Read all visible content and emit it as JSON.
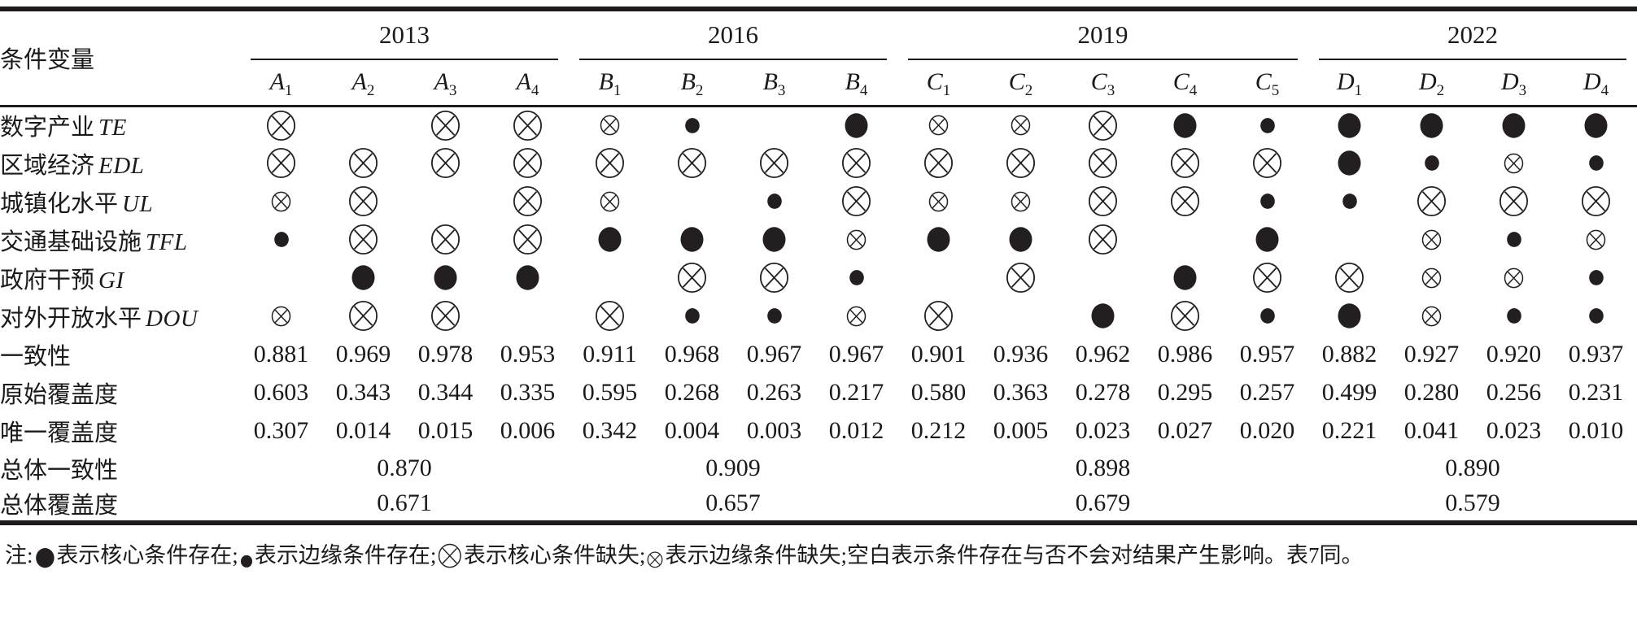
{
  "colors": {
    "ink": "#1f1b1c",
    "symbol": "#231f20",
    "background": "#ffffff"
  },
  "table": {
    "corner_label": "条件变量",
    "year_groups": [
      {
        "year": "2013",
        "cols": [
          "A1",
          "A2",
          "A3",
          "A4"
        ]
      },
      {
        "year": "2016",
        "cols": [
          "B1",
          "B2",
          "B3",
          "B4"
        ]
      },
      {
        "year": "2019",
        "cols": [
          "C1",
          "C2",
          "C3",
          "C4",
          "C5"
        ]
      },
      {
        "year": "2022",
        "cols": [
          "D1",
          "D2",
          "D3",
          "D4"
        ]
      }
    ],
    "symbol_legend": {
      "CP": "core-condition-present-large-filled-circle",
      "PP": "peripheral-condition-present-small-filled-circle",
      "CA": "core-condition-absent-large-circle-cross",
      "PA": "peripheral-condition-absent-small-circle-cross",
      "": "blank-condition-irrelevant"
    },
    "condition_rows": [
      {
        "label_zh": "数字产业",
        "label_en": "TE",
        "cells": [
          "CA",
          "",
          "CA",
          "CA",
          "PA",
          "PP",
          "",
          "CP",
          "PA",
          "PA",
          "CA",
          "CP",
          "PP",
          "CP",
          "CP",
          "CP",
          "CP"
        ]
      },
      {
        "label_zh": "区域经济",
        "label_en": "EDL",
        "cells": [
          "CA",
          "CA",
          "CA",
          "CA",
          "CA",
          "CA",
          "CA",
          "CA",
          "CA",
          "CA",
          "CA",
          "CA",
          "CA",
          "CP",
          "PP",
          "PA",
          "PP"
        ]
      },
      {
        "label_zh": "城镇化水平",
        "label_en": "UL",
        "cells": [
          "PA",
          "CA",
          "",
          "CA",
          "PA",
          "",
          "PP",
          "CA",
          "PA",
          "PA",
          "CA",
          "CA",
          "PP",
          "PP",
          "CA",
          "CA",
          "CA"
        ]
      },
      {
        "label_zh": "交通基础设施",
        "label_en": "TFL",
        "cells": [
          "PP",
          "CA",
          "CA",
          "CA",
          "CP",
          "CP",
          "CP",
          "PA",
          "CP",
          "CP",
          "CA",
          "",
          "CP",
          "",
          "PA",
          "PP",
          "PA"
        ]
      },
      {
        "label_zh": "政府干预",
        "label_en": "GI",
        "cells": [
          "",
          "CP",
          "CP",
          "CP",
          "",
          "CA",
          "CA",
          "PP",
          "",
          "CA",
          "",
          "CP",
          "CA",
          "CA",
          "PA",
          "PA",
          "PP"
        ]
      },
      {
        "label_zh": "对外开放水平",
        "label_en": "DOU",
        "cells": [
          "PA",
          "CA",
          "CA",
          "",
          "CA",
          "PP",
          "PP",
          "PA",
          "CA",
          "",
          "CP",
          "CA",
          "PP",
          "CP",
          "PA",
          "PP",
          "PP"
        ]
      }
    ],
    "stat_rows": [
      {
        "label": "一致性",
        "values": [
          "0.881",
          "0.969",
          "0.978",
          "0.953",
          "0.911",
          "0.968",
          "0.967",
          "0.967",
          "0.901",
          "0.936",
          "0.962",
          "0.986",
          "0.957",
          "0.882",
          "0.927",
          "0.920",
          "0.937"
        ]
      },
      {
        "label": "原始覆盖度",
        "values": [
          "0.603",
          "0.343",
          "0.344",
          "0.335",
          "0.595",
          "0.268",
          "0.263",
          "0.217",
          "0.580",
          "0.363",
          "0.278",
          "0.295",
          "0.257",
          "0.499",
          "0.280",
          "0.256",
          "0.231"
        ]
      },
      {
        "label": "唯一覆盖度",
        "values": [
          "0.307",
          "0.014",
          "0.015",
          "0.006",
          "0.342",
          "0.004",
          "0.003",
          "0.012",
          "0.212",
          "0.005",
          "0.023",
          "0.027",
          "0.020",
          "0.221",
          "0.041",
          "0.023",
          "0.010"
        ]
      }
    ],
    "overall_rows": [
      {
        "label": "总体一致性",
        "values": [
          "0.870",
          "0.909",
          "0.898",
          "0.890"
        ]
      },
      {
        "label": "总体覆盖度",
        "values": [
          "0.671",
          "0.657",
          "0.679",
          "0.579"
        ]
      }
    ]
  },
  "note": {
    "segments": [
      {
        "t": "text",
        "v": "注:"
      },
      {
        "t": "sym",
        "v": "CP"
      },
      {
        "t": "text",
        "v": "表示核心条件存在;"
      },
      {
        "t": "sym",
        "v": "PP"
      },
      {
        "t": "text",
        "v": "表示边缘条件存在;"
      },
      {
        "t": "sym",
        "v": "CA"
      },
      {
        "t": "text",
        "v": "表示核心条件缺失;"
      },
      {
        "t": "sym",
        "v": "PA"
      },
      {
        "t": "text",
        "v": "表示边缘条件缺失;空白表示条件存在与否不会对结果产生影响。表7同。"
      }
    ]
  }
}
